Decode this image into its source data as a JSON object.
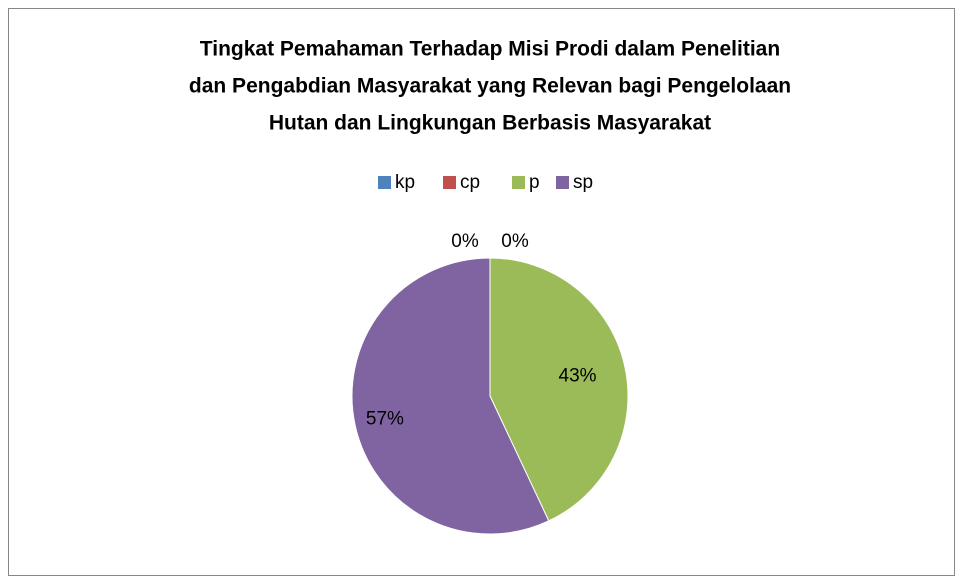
{
  "chart_data": {
    "type": "pie",
    "title": [
      "Tingkat Pemahaman Terhadap Misi Prodi dalam Penelitian",
      "dan Pengabdian Masyarakat yang Relevan bagi Pengelolaan",
      "Hutan dan Lingkungan Berbasis Masyarakat"
    ],
    "categories": [
      "kp",
      "cp",
      "p",
      "sp"
    ],
    "values": [
      0,
      0,
      43,
      57
    ],
    "value_labels": [
      "0%",
      "0%",
      "43%",
      "57%"
    ],
    "colors": [
      "#4f81bd",
      "#c0504d",
      "#9bbb59",
      "#8064a2"
    ],
    "legend": "top"
  }
}
